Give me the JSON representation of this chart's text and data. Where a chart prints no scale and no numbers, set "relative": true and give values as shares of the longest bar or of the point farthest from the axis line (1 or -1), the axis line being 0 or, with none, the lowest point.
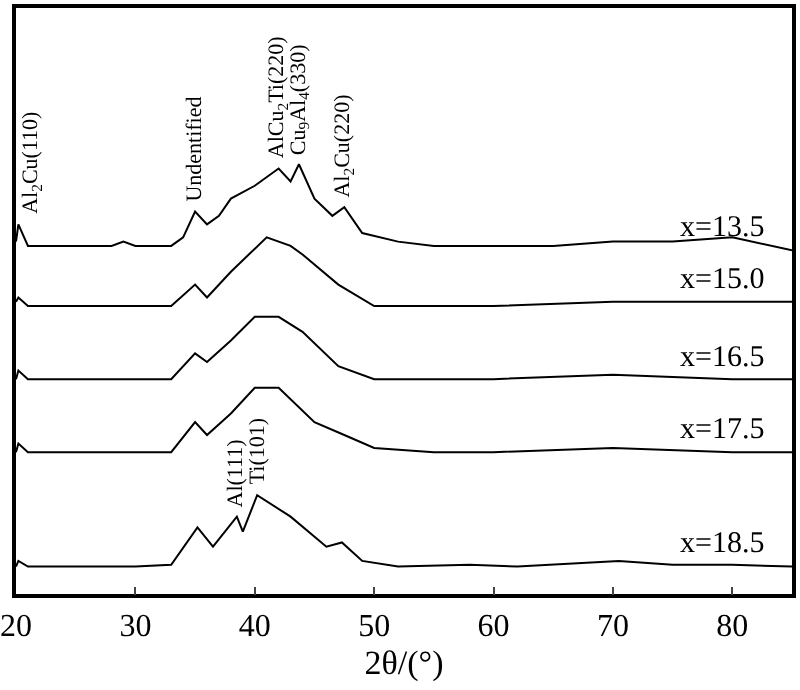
{
  "chart_data": {
    "type": "line",
    "relative": true,
    "xlabel": "2θ/(°)",
    "xlim": [
      20,
      85
    ],
    "xticks": [
      20,
      30,
      40,
      50,
      60,
      70,
      80
    ],
    "grid": false,
    "legend": false,
    "marker": "none",
    "line_style": "solid",
    "series": [
      {
        "name": "x=13.5",
        "color": "#000000",
        "x": [
          20,
          20.2,
          21,
          25,
          28,
          29,
          30,
          33,
          34,
          35,
          36,
          37,
          38,
          40,
          42,
          43,
          43.7,
          45,
          46.5,
          47.5,
          49,
          52,
          55,
          60,
          65,
          70,
          75,
          80,
          85
        ],
        "values": [
          0.82,
          0.86,
          0.81,
          0.81,
          0.81,
          0.82,
          0.81,
          0.81,
          0.83,
          0.89,
          0.86,
          0.88,
          0.92,
          0.95,
          0.99,
          0.96,
          1,
          0.92,
          0.88,
          0.9,
          0.84,
          0.82,
          0.81,
          0.81,
          0.81,
          0.82,
          0.82,
          0.83,
          0.8
        ]
      },
      {
        "name": "x=15.0",
        "color": "#000000",
        "x": [
          20,
          20.2,
          21,
          25,
          30,
          33,
          35,
          36,
          38,
          41,
          43,
          44,
          47,
          50,
          55,
          60,
          70,
          80,
          85
        ],
        "values": [
          0.68,
          0.69,
          0.67,
          0.67,
          0.67,
          0.67,
          0.72,
          0.69,
          0.75,
          0.83,
          0.81,
          0.79,
          0.72,
          0.67,
          0.67,
          0.67,
          0.68,
          0.68,
          0.68
        ]
      },
      {
        "name": "x=16.5",
        "color": "#000000",
        "x": [
          20,
          20.2,
          21,
          25,
          30,
          33,
          35,
          36,
          38,
          40,
          42,
          44,
          47,
          50,
          55,
          60,
          70,
          80,
          85
        ],
        "values": [
          0.5,
          0.52,
          0.5,
          0.5,
          0.5,
          0.5,
          0.56,
          0.54,
          0.59,
          0.645,
          0.645,
          0.61,
          0.53,
          0.5,
          0.5,
          0.5,
          0.51,
          0.5,
          0.5
        ]
      },
      {
        "name": "x=17.5",
        "color": "#000000",
        "x": [
          20,
          20.2,
          21,
          25,
          30,
          33,
          35,
          36,
          38,
          40,
          42,
          45,
          47.5,
          50,
          55,
          60,
          70,
          80,
          85
        ],
        "values": [
          0.33,
          0.35,
          0.33,
          0.33,
          0.33,
          0.33,
          0.4,
          0.37,
          0.42,
          0.48,
          0.48,
          0.4,
          0.37,
          0.34,
          0.33,
          0.33,
          0.34,
          0.33,
          0.33
        ]
      },
      {
        "name": "x=18.5",
        "color": "#000000",
        "x": [
          20,
          20.2,
          21,
          25,
          30,
          33,
          35.2,
          36.5,
          38.5,
          39,
          40.2,
          43,
          46,
          47.3,
          49,
          52,
          58,
          62,
          70.5,
          75,
          80,
          85
        ],
        "values": [
          0.064,
          0.077,
          0.064,
          0.064,
          0.064,
          0.068,
          0.155,
          0.11,
          0.18,
          0.145,
          0.23,
          0.18,
          0.11,
          0.12,
          0.077,
          0.064,
          0.068,
          0.064,
          0.077,
          0.068,
          0.068,
          0.064
        ]
      }
    ],
    "annotations": [
      {
        "text": "Al$_{2}$Cu(110)",
        "x": 20.2,
        "y": 0.86
      },
      {
        "text": "Undentified",
        "x": 35,
        "y": 0.89
      },
      {
        "text": "AlCu$_{2}$Ti(220)",
        "x": 42,
        "y": 0.99
      },
      {
        "text": "Cu$_{9}$Al$_{4}$(330)",
        "x": 43.7,
        "y": 1
      },
      {
        "text": "Al$_{2}$Cu(220)",
        "x": 47.5,
        "y": 0.9
      },
      {
        "text": "Al(111)",
        "x": 38.5,
        "y": 0.18
      },
      {
        "text": "Ti(101)",
        "x": 40.2,
        "y": 0.23
      }
    ]
  }
}
